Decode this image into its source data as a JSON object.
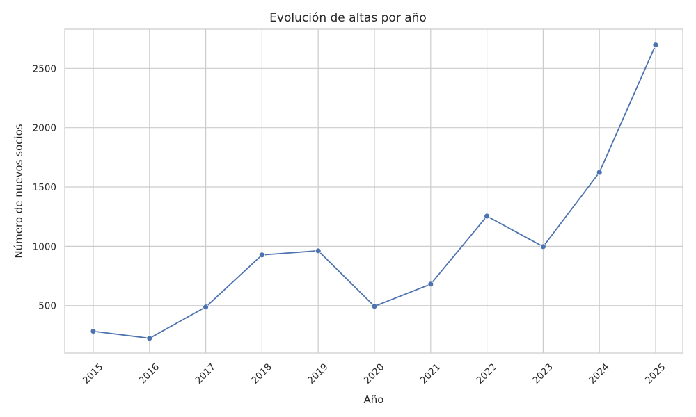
{
  "chart_data": {
    "type": "line",
    "title": "Evolución de altas por año",
    "xlabel": "Año",
    "ylabel": "Número de nuevos socios",
    "categories": [
      "2015",
      "2016",
      "2017",
      "2018",
      "2019",
      "2020",
      "2021",
      "2022",
      "2023",
      "2024",
      "2025"
    ],
    "series": [
      {
        "name": "Nuevos socios",
        "values": [
          284,
          225,
          488,
          927,
          962,
          494,
          681,
          1254,
          997,
          1623,
          2697
        ],
        "color": "#4c72b0"
      }
    ],
    "yticks": [
      500,
      1000,
      1500,
      2000,
      2500
    ],
    "ylim": [
      100,
      2830
    ],
    "grid": true,
    "legend": "none",
    "xtick_rotation": 45
  }
}
